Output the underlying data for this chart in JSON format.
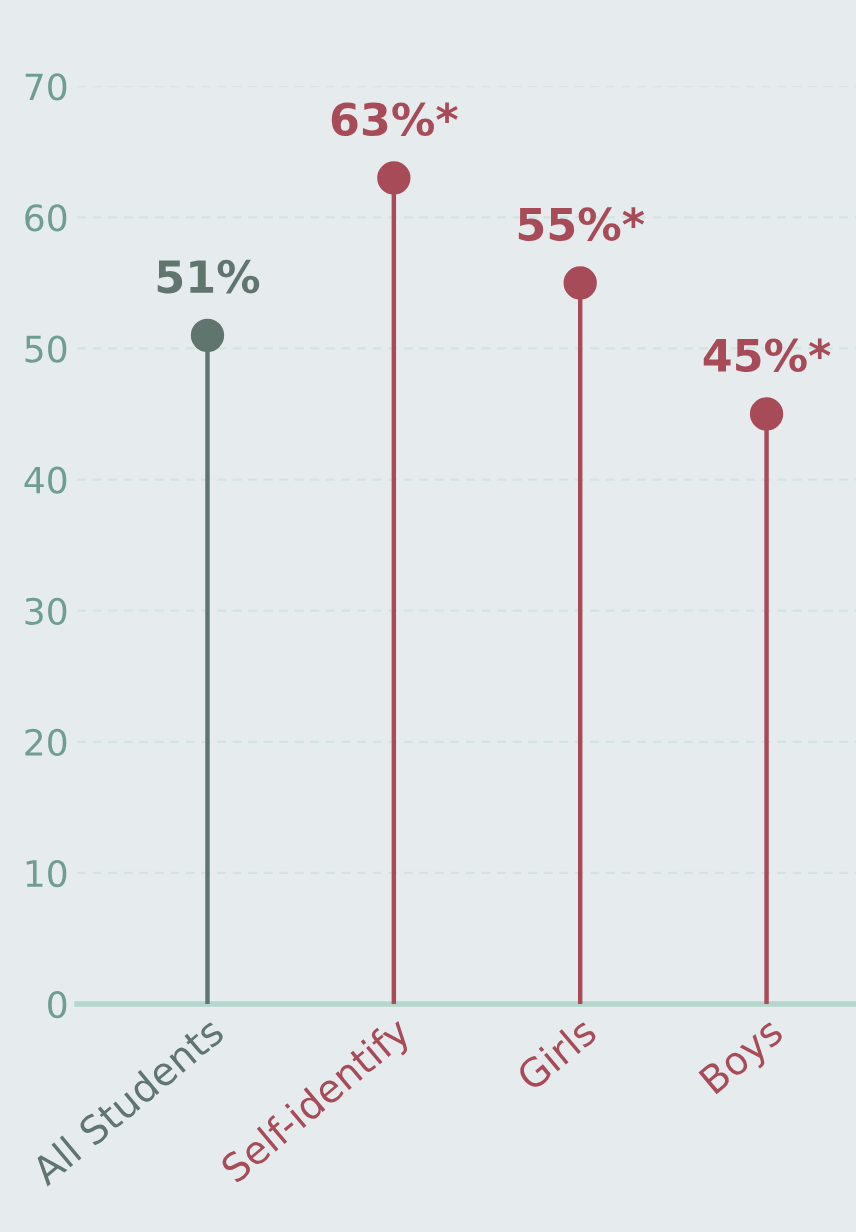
{
  "chart_data": {
    "type": "lollipop",
    "categories": [
      "All Students",
      "Self-identify",
      "Girls",
      "Boys"
    ],
    "values": [
      51,
      63,
      55,
      45
    ],
    "colors": [
      "#5f756e",
      "#a84b59",
      "#a84b59",
      "#a84b59"
    ],
    "value_labels": [
      "51%",
      "63%*",
      "55%*",
      "45%*"
    ],
    "ylim": [
      0,
      70
    ],
    "yticks": [
      0,
      10,
      20,
      30,
      40,
      50,
      60,
      70
    ],
    "grid": "y",
    "marker": "circle"
  }
}
